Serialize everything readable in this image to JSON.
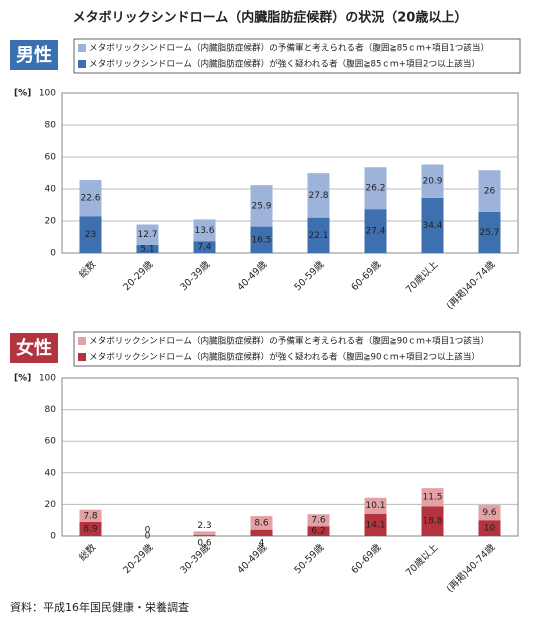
{
  "title": "メタボリックシンドローム（内臓脂肪症候群）の状況（20歳以上）",
  "source": "資料：平成16年国民健康・栄養調査",
  "chart_data": [
    {
      "type": "bar",
      "stacked": true,
      "badge": "男性",
      "y_unit": "[%]",
      "categories": [
        "総数",
        "20-29歳",
        "30-39歳",
        "40-49歳",
        "50-59歳",
        "60-69歳",
        "70歳以上",
        "(再掲)40-74歳"
      ],
      "series": [
        {
          "name": "メタボリックシンドローム（内臓脂肪症候群）の予備軍と考えられる者（腹囲≧85ｃｍ+項目1つ該当）",
          "color": "#9db3da",
          "values": [
            22.6,
            12.7,
            13.6,
            25.9,
            27.8,
            26.2,
            20.9,
            26
          ]
        },
        {
          "name": "メタボリックシンドローム（内臓脂肪症候群）が強く疑われる者（腹囲≧85ｃｍ+項目2つ以上該当）",
          "color": "#3e6fae",
          "values": [
            23,
            5.1,
            7.4,
            16.5,
            22.1,
            27.4,
            34.4,
            25.7
          ]
        }
      ],
      "ylim": [
        0,
        100
      ],
      "yticks": [
        0,
        20,
        40,
        60,
        80,
        100
      ],
      "grid": true,
      "badge_color": "#3a6fb0"
    },
    {
      "type": "bar",
      "stacked": true,
      "badge": "女性",
      "y_unit": "[%]",
      "categories": [
        "総数",
        "20-29歳",
        "30-39歳",
        "40-49歳",
        "50-59歳",
        "60-69歳",
        "70歳以上",
        "(再掲)40-74歳"
      ],
      "series": [
        {
          "name": "メタボリックシンドローム（内臓脂肪症候群）の予備軍と考えられる者（腹囲≧90ｃｍ+項目1つ該当）",
          "color": "#e3a1a6",
          "values": [
            7.8,
            0,
            2.3,
            8.6,
            7.6,
            10.1,
            11.5,
            9.6
          ]
        },
        {
          "name": "メタボリックシンドローム（内臓脂肪症候群）が強く疑われる者（腹囲≧90ｃｍ+項目2つ以上該当）",
          "color": "#b3333f",
          "values": [
            8.9,
            0,
            0.6,
            4,
            6.2,
            14.1,
            18.8,
            10
          ]
        }
      ],
      "ylim": [
        0,
        100
      ],
      "yticks": [
        0,
        20,
        40,
        60,
        80,
        100
      ],
      "grid": true,
      "badge_color": "#b3333f"
    }
  ]
}
